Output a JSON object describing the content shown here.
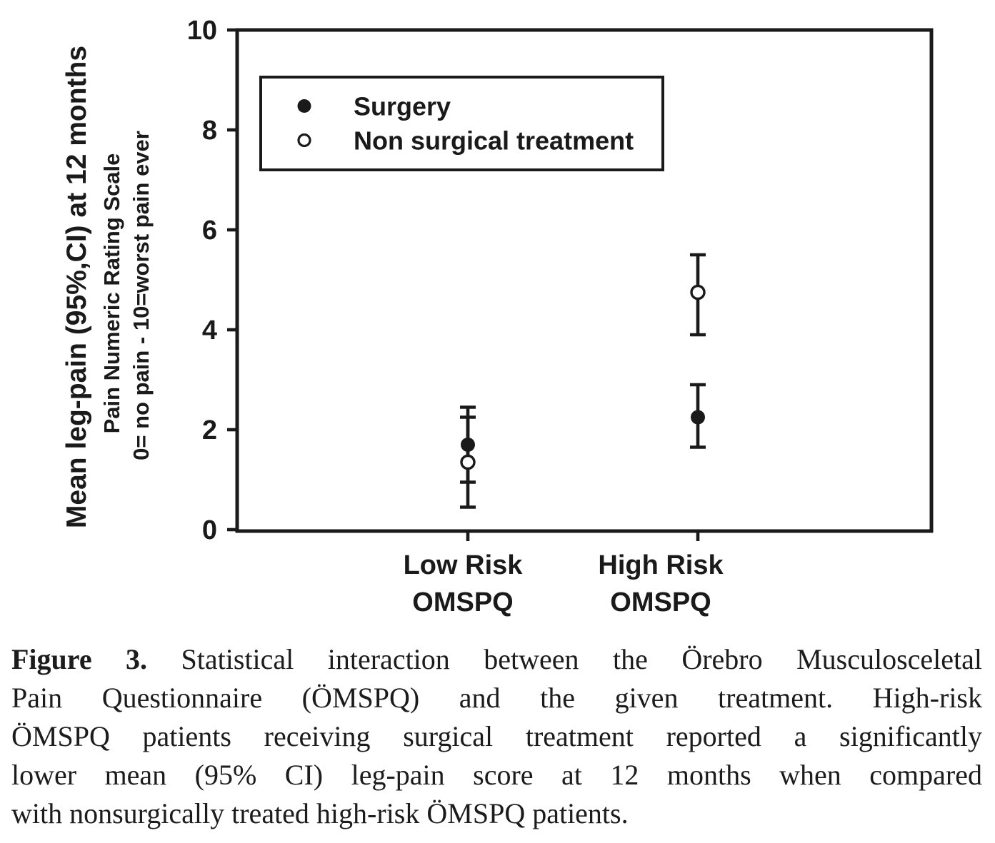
{
  "colors": {
    "ink": "#1a1a1a",
    "background": "#ffffff",
    "caption_text": "#1c1c1c"
  },
  "chart_data": {
    "type": "scatter",
    "subtype": "point-estimates-with-95ci-error-bars",
    "ylabel_lines": [
      "Mean leg-pain (95%,CI) at 12 months",
      "Pain Numeric Rating Scale",
      "0= no pain - 10=worst pain ever"
    ],
    "xlabel": "",
    "title": "",
    "grid": false,
    "ylim": [
      0,
      10
    ],
    "yticks": [
      0,
      2,
      4,
      6,
      8,
      10
    ],
    "categories": [
      "Low Risk\nOMSPQ",
      "High Risk\nOMSPQ"
    ],
    "legend": {
      "position": "top-left-inside",
      "border": true
    },
    "series": [
      {
        "name": "Surgery",
        "marker": "filled-circle",
        "points": [
          {
            "category": "Low Risk OMSPQ",
            "mean": 1.7,
            "ci_low": 0.95,
            "ci_high": 2.45
          },
          {
            "category": "High Risk OMSPQ",
            "mean": 2.25,
            "ci_low": 1.65,
            "ci_high": 2.9
          }
        ]
      },
      {
        "name": "Non surgical treatment",
        "marker": "open-circle",
        "points": [
          {
            "category": "Low Risk OMSPQ",
            "mean": 1.35,
            "ci_low": 0.45,
            "ci_high": 2.25
          },
          {
            "category": "High Risk OMSPQ",
            "mean": 4.75,
            "ci_low": 3.9,
            "ci_high": 5.5
          }
        ]
      }
    ]
  },
  "caption": {
    "bold_label": "Figure 3.",
    "first_line_rest": " Statistical interaction between the Örebro Musculosceletal",
    "lines": [
      "Pain Questionnaire (ÖMSPQ) and the given treatment. High-risk",
      "ÖMSPQ patients receiving surgical treatment reported a significantly",
      "lower mean (95% CI) leg-pain score at 12 months when compared",
      "with nonsurgically treated high-risk ÖMSPQ patients."
    ]
  }
}
